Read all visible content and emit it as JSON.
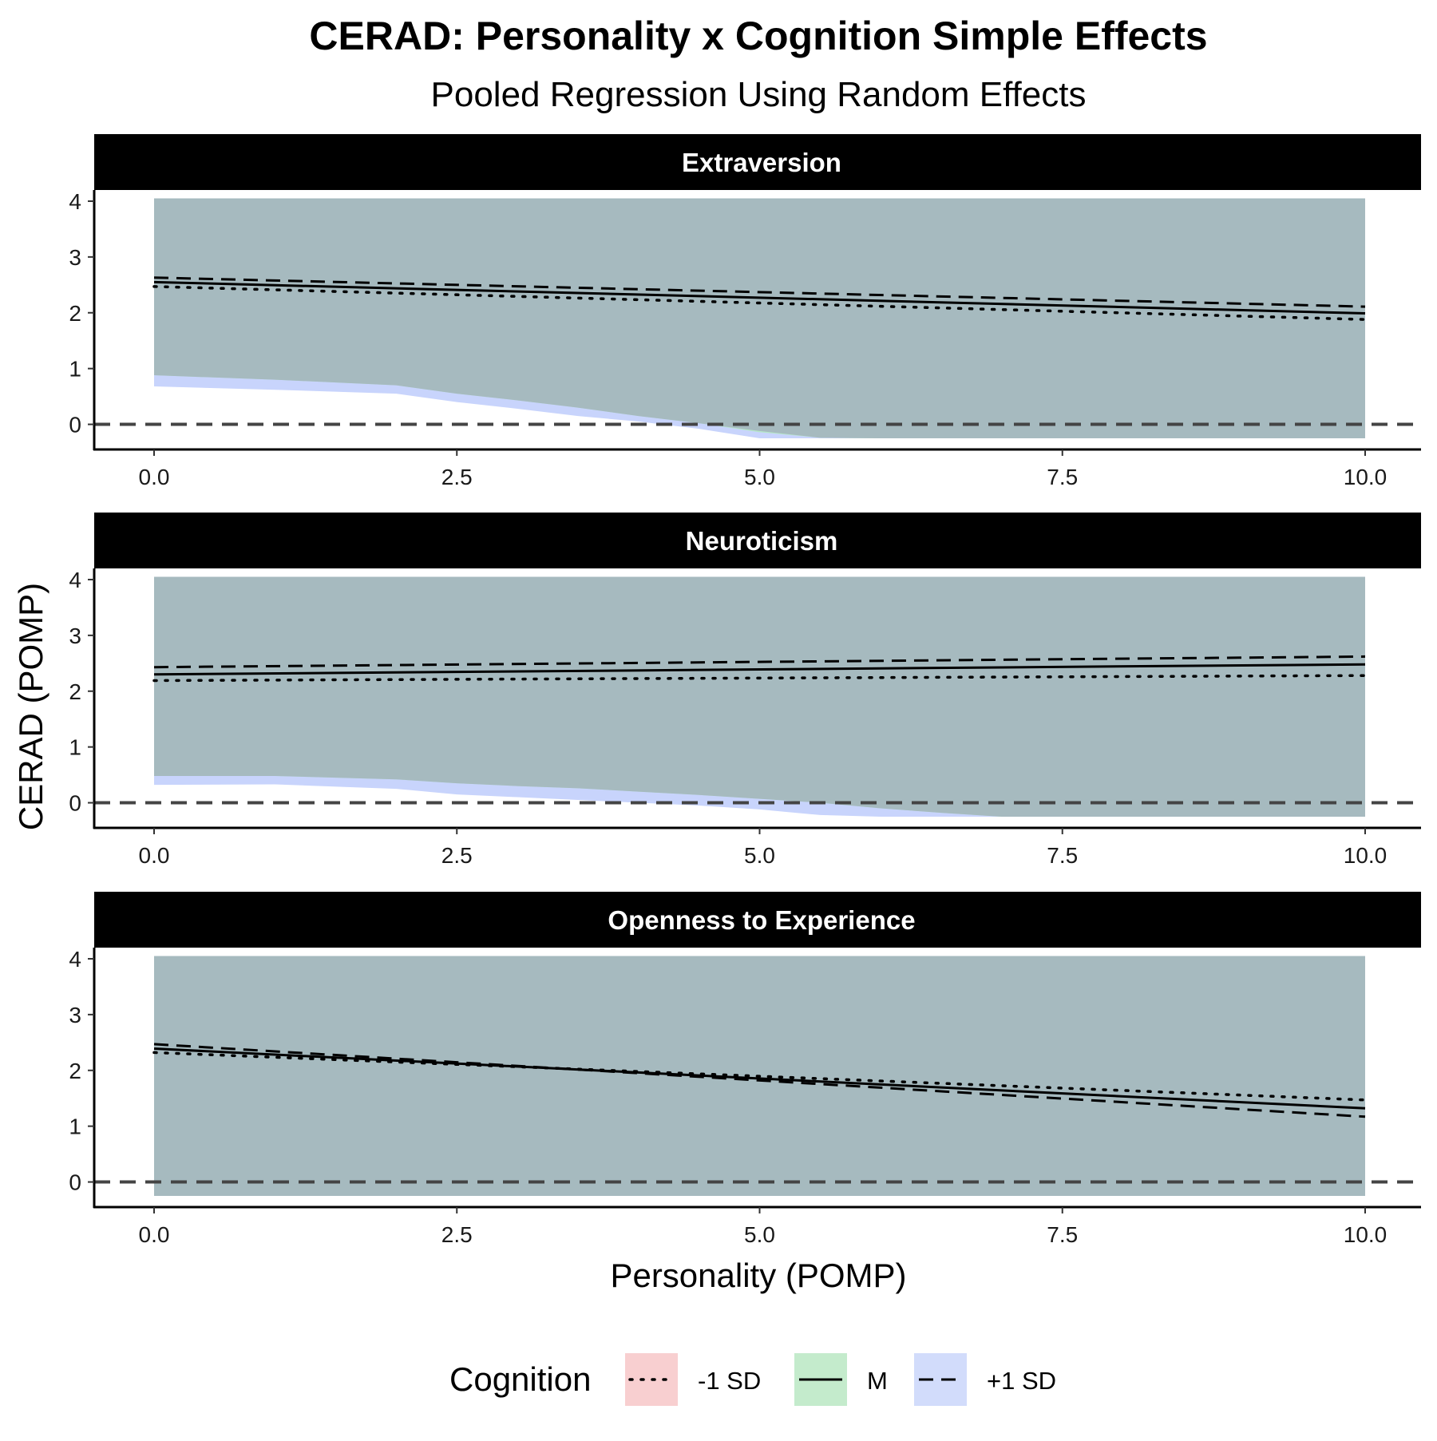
{
  "title": "CERAD: Personality x Cognition Simple Effects",
  "subtitle": "Pooled Regression Using Random Effects",
  "colors": {
    "strip_background": "#000000",
    "strip_text": "#ffffff",
    "ribbon_overlap": "#a6babf",
    "ribbon_minus1": "#f8c8c8",
    "ribbon_mean": "#b6e6c8",
    "ribbon_plus1": "#c8d4fc",
    "reference_line": "#444444"
  },
  "legend": {
    "title": "Cognition",
    "position": "bottom",
    "items": [
      {
        "label": "-1 SD",
        "linetype": "dotted",
        "fill": "#f8cfd0"
      },
      {
        "label": "M",
        "linetype": "solid",
        "fill": "#c4ebcc"
      },
      {
        "label": "+1 SD",
        "linetype": "dashed",
        "fill": "#d2dcfb"
      }
    ]
  },
  "chart_data": {
    "type": "line",
    "title": "CERAD: Personality x Cognition Simple Effects",
    "subtitle": "Pooled Regression Using Random Effects",
    "xlabel": "Personality (POMP)",
    "ylabel": "CERAD (POMP)",
    "xlim": [
      0,
      10
    ],
    "ylim": [
      -0.45,
      4.2
    ],
    "x_ticks": [
      "0.0",
      "2.5",
      "5.0",
      "7.5",
      "10.0"
    ],
    "y_ticks": [
      "0",
      "1",
      "2",
      "3",
      "4"
    ],
    "reference_line": {
      "y": 0,
      "linetype": "dashed"
    },
    "grid": false,
    "facets": [
      {
        "name": "Extraversion",
        "x": [
          0,
          10
        ],
        "series": [
          {
            "name": "-1 SD",
            "linetype": "dotted",
            "values": [
              2.47,
              1.88
            ]
          },
          {
            "name": "M",
            "linetype": "solid",
            "values": [
              2.55,
              1.99
            ]
          },
          {
            "name": "+1 SD",
            "linetype": "dashed",
            "values": [
              2.63,
              2.11
            ]
          }
        ],
        "ribbon": {
          "upper": 4.05,
          "x": [
            0,
            1,
            2,
            2.5,
            3,
            3.5,
            4,
            4.5,
            5,
            5.5,
            6,
            7,
            8,
            9,
            10
          ],
          "lower_minus1": [
            0.85,
            0.78,
            0.68,
            0.52,
            0.4,
            0.28,
            0.15,
            0.02,
            -0.12,
            -0.25,
            -0.25,
            -0.25,
            -0.25,
            -0.25,
            -0.25
          ],
          "lower_mean": [
            0.88,
            0.8,
            0.7,
            0.55,
            0.43,
            0.3,
            0.15,
            0.02,
            -0.14,
            -0.24,
            -0.25,
            -0.25,
            -0.25,
            -0.25,
            -0.25
          ],
          "lower_plus1": [
            0.68,
            0.62,
            0.55,
            0.4,
            0.28,
            0.15,
            0.05,
            -0.08,
            -0.25,
            -0.25,
            -0.25,
            -0.25,
            -0.25,
            -0.25,
            -0.25
          ]
        }
      },
      {
        "name": "Neuroticism",
        "x": [
          0,
          10
        ],
        "series": [
          {
            "name": "-1 SD",
            "linetype": "dotted",
            "values": [
              2.19,
              2.28
            ]
          },
          {
            "name": "M",
            "linetype": "solid",
            "values": [
              2.3,
              2.48
            ]
          },
          {
            "name": "+1 SD",
            "linetype": "dashed",
            "values": [
              2.43,
              2.62
            ]
          }
        ],
        "ribbon": {
          "upper": 4.05,
          "x": [
            0,
            1,
            2,
            2.5,
            3,
            3.5,
            4,
            4.5,
            5,
            5.5,
            6,
            6.5,
            7,
            8,
            9,
            10
          ],
          "lower_minus1": [
            0.45,
            0.45,
            0.4,
            0.32,
            0.28,
            0.25,
            0.2,
            0.12,
            0.05,
            -0.02,
            -0.1,
            -0.2,
            -0.25,
            -0.25,
            -0.25,
            -0.25
          ],
          "lower_mean": [
            0.48,
            0.48,
            0.42,
            0.35,
            0.3,
            0.26,
            0.2,
            0.14,
            0.07,
            0.0,
            -0.1,
            -0.18,
            -0.25,
            -0.25,
            -0.25,
            -0.25
          ],
          "lower_plus1": [
            0.32,
            0.33,
            0.25,
            0.15,
            0.1,
            0.05,
            0.0,
            -0.05,
            -0.12,
            -0.22,
            -0.25,
            -0.25,
            -0.25,
            -0.25,
            -0.25,
            -0.25
          ]
        }
      },
      {
        "name": "Openness to Experience",
        "x": [
          0,
          10
        ],
        "series": [
          {
            "name": "-1 SD",
            "linetype": "dotted",
            "values": [
              2.32,
              1.47
            ]
          },
          {
            "name": "M",
            "linetype": "solid",
            "values": [
              2.39,
              1.32
            ]
          },
          {
            "name": "+1 SD",
            "linetype": "dashed",
            "values": [
              2.47,
              1.17
            ]
          }
        ],
        "ribbon": {
          "upper": 4.05,
          "x": [
            0,
            10
          ],
          "lower_minus1": [
            -0.25,
            -0.25
          ],
          "lower_mean": [
            -0.25,
            -0.25
          ],
          "lower_plus1": [
            -0.25,
            -0.25
          ]
        }
      }
    ]
  }
}
